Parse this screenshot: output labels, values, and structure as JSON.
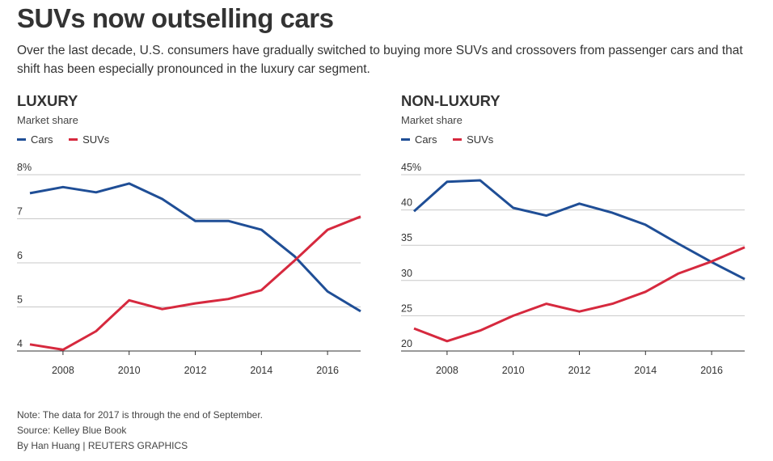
{
  "header": {
    "title": "SUVs now outselling cars",
    "subtitle": "Over the last decade, U.S. consumers have gradually switched to buying more SUVs and crossovers from passenger cars and that shift has been especially pronounced in the luxury car segment."
  },
  "colors": {
    "cars": "#1f4e96",
    "suvs": "#d6293e",
    "grid": "#c8c8c8",
    "axis": "#333333"
  },
  "footer": {
    "note": "Note: The data for 2017 is through the end of September.",
    "source": "Source: Kelley Blue Book",
    "credit": "By Han Huang | REUTERS GRAPHICS"
  },
  "chart_data": [
    {
      "type": "line",
      "title": "LUXURY",
      "subtitle": "Market share",
      "x": [
        2007,
        2008,
        2009,
        2010,
        2011,
        2012,
        2013,
        2014,
        2015,
        2016,
        2017
      ],
      "xticks": [
        2008,
        2010,
        2012,
        2014,
        2016
      ],
      "xlim": [
        2007,
        2017
      ],
      "ylim": [
        4,
        8
      ],
      "yticks": [
        4,
        5,
        6,
        7,
        8
      ],
      "ytick_labels": [
        "4",
        "5",
        "6",
        "7",
        "8%"
      ],
      "grid": true,
      "legend": "top-left",
      "series": [
        {
          "name": "Cars",
          "color": "#1f4e96",
          "values": [
            7.58,
            7.72,
            7.6,
            7.8,
            7.45,
            6.95,
            6.95,
            6.75,
            6.15,
            5.35,
            4.9
          ]
        },
        {
          "name": "SUVs",
          "color": "#d6293e",
          "values": [
            4.15,
            4.03,
            4.45,
            5.15,
            4.95,
            5.08,
            5.18,
            5.38,
            6.05,
            6.75,
            7.05
          ]
        }
      ]
    },
    {
      "type": "line",
      "title": "NON-LUXURY",
      "subtitle": "Market share",
      "x": [
        2007,
        2008,
        2009,
        2010,
        2011,
        2012,
        2013,
        2014,
        2015,
        2016,
        2017
      ],
      "xticks": [
        2008,
        2010,
        2012,
        2014,
        2016
      ],
      "xlim": [
        2007,
        2017
      ],
      "ylim": [
        20,
        45
      ],
      "yticks": [
        20,
        25,
        30,
        35,
        40,
        45
      ],
      "ytick_labels": [
        "20",
        "25",
        "30",
        "35",
        "40",
        "45%"
      ],
      "grid": true,
      "legend": "top-left",
      "series": [
        {
          "name": "Cars",
          "color": "#1f4e96",
          "values": [
            39.8,
            44.0,
            44.2,
            40.3,
            39.2,
            40.9,
            39.6,
            37.9,
            35.2,
            32.6,
            30.2
          ]
        },
        {
          "name": "SUVs",
          "color": "#d6293e",
          "values": [
            23.2,
            21.4,
            22.9,
            25.0,
            26.7,
            25.6,
            26.7,
            28.4,
            31.0,
            32.7,
            34.7
          ]
        }
      ]
    }
  ]
}
